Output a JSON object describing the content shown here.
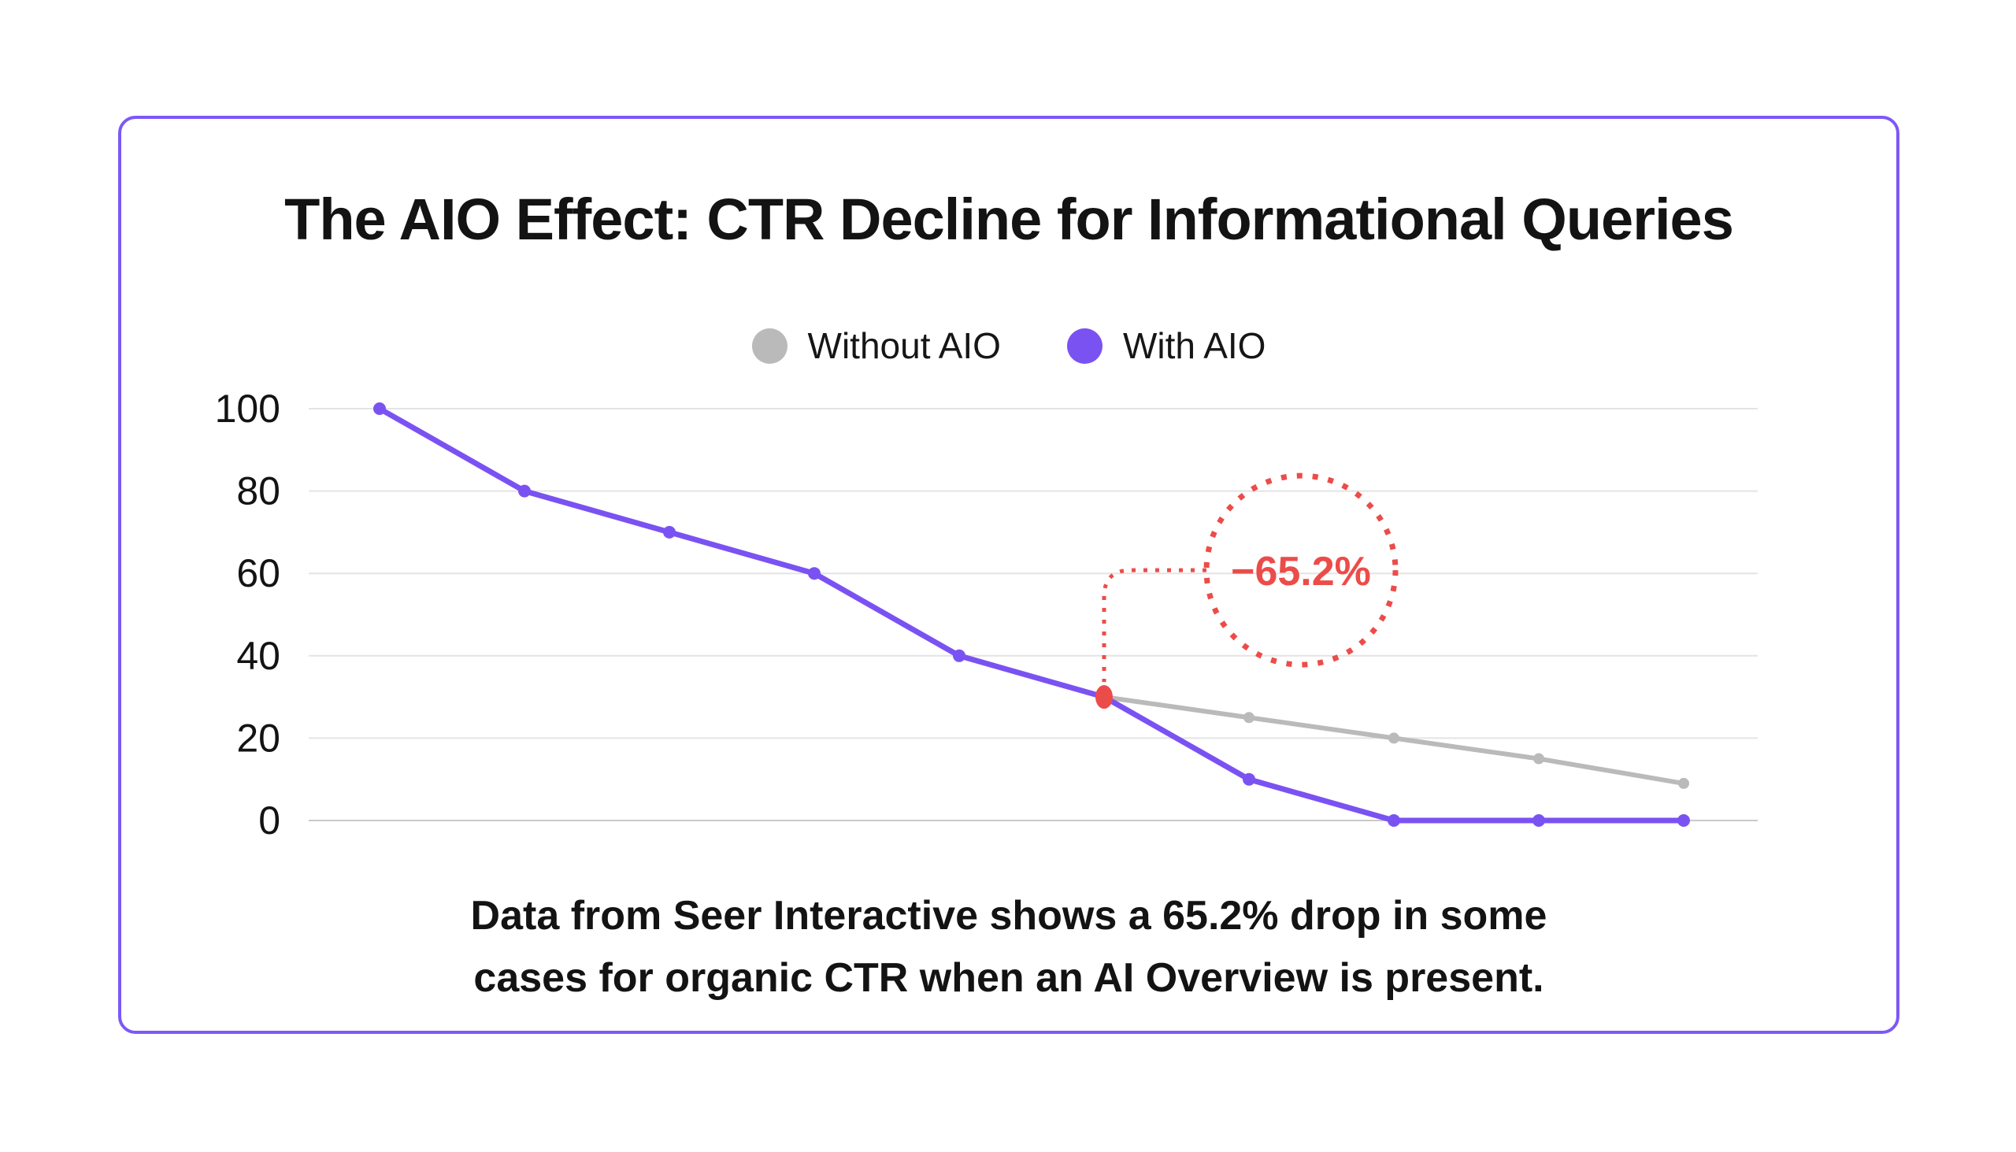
{
  "card": {
    "title": "The AIO Effect: CTR Decline for Informational Queries"
  },
  "legend": [
    {
      "label": "Without AIO",
      "color": "#bababa"
    },
    {
      "label": "With AIO",
      "color": "#7b52f2"
    }
  ],
  "caption": {
    "lines": [
      "Data from Seer Interactive shows a 65.2% drop in some",
      "cases for organic CTR when an AI Overview is present."
    ]
  },
  "colors": {
    "accent_purple": "#7b52f2",
    "border_purple": "#7c59f6",
    "line_gray": "#bababa",
    "annotation_red": "#ec4c49",
    "gridline": "#e4e4e4",
    "zero_line": "#c9c9c9",
    "text": "#131313"
  },
  "chart_data": {
    "type": "line",
    "title": "The AIO Effect: CTR Decline for Informational Queries",
    "xlabel": "",
    "ylabel": "",
    "x": [
      1,
      2,
      3,
      4,
      5,
      6,
      7,
      8,
      9,
      10
    ],
    "x_tick_labels": [],
    "yticks": [
      100,
      80,
      60,
      40,
      20,
      0
    ],
    "ylim": [
      0,
      100
    ],
    "grid": "horizontal",
    "legend_position": "top",
    "series": [
      {
        "name": "Without AIO",
        "color": "#bababa",
        "width": 6,
        "marker_r": 7,
        "values": [
          null,
          null,
          null,
          null,
          null,
          30,
          25,
          20,
          15,
          9
        ]
      },
      {
        "name": "With AIO",
        "color": "#7b52f2",
        "width": 7,
        "marker_r": 8,
        "values": [
          100,
          80,
          70,
          60,
          40,
          30,
          10,
          0,
          0,
          0
        ]
      }
    ],
    "annotation": {
      "label": "−65.2%",
      "series": "With AIO",
      "at_index": 5,
      "at_value": 30,
      "color": "#ec4c49"
    }
  }
}
